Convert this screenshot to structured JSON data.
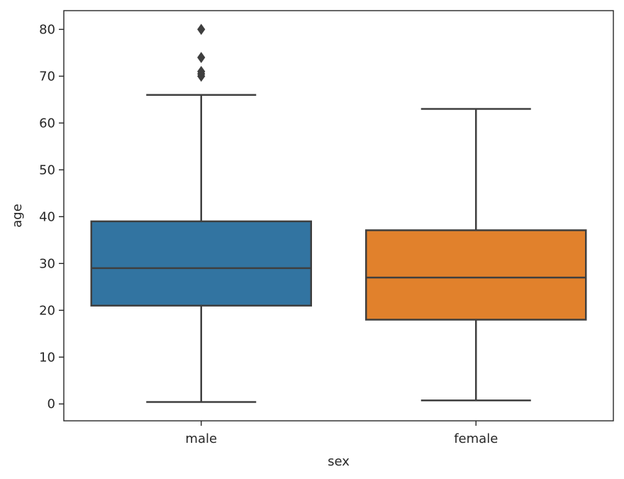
{
  "chart_data": {
    "type": "box",
    "xlabel": "sex",
    "ylabel": "age",
    "categories": [
      "male",
      "female"
    ],
    "ylim": [
      -3.6,
      84
    ],
    "yticks": [
      0,
      10,
      20,
      30,
      40,
      50,
      60,
      70,
      80
    ],
    "grid": false,
    "colors": [
      "#3274a1",
      "#e1812c"
    ],
    "line_color": "#3f3f3f",
    "boxes": [
      {
        "category": "male",
        "whisker_low": 0.42,
        "q1": 21,
        "median": 29,
        "q3": 39,
        "whisker_high": 66,
        "outliers": [
          70,
          70.5,
          71,
          74,
          80
        ]
      },
      {
        "category": "female",
        "whisker_low": 0.75,
        "q1": 18,
        "median": 27,
        "q3": 37.1,
        "whisker_high": 63,
        "outliers": []
      }
    ]
  }
}
